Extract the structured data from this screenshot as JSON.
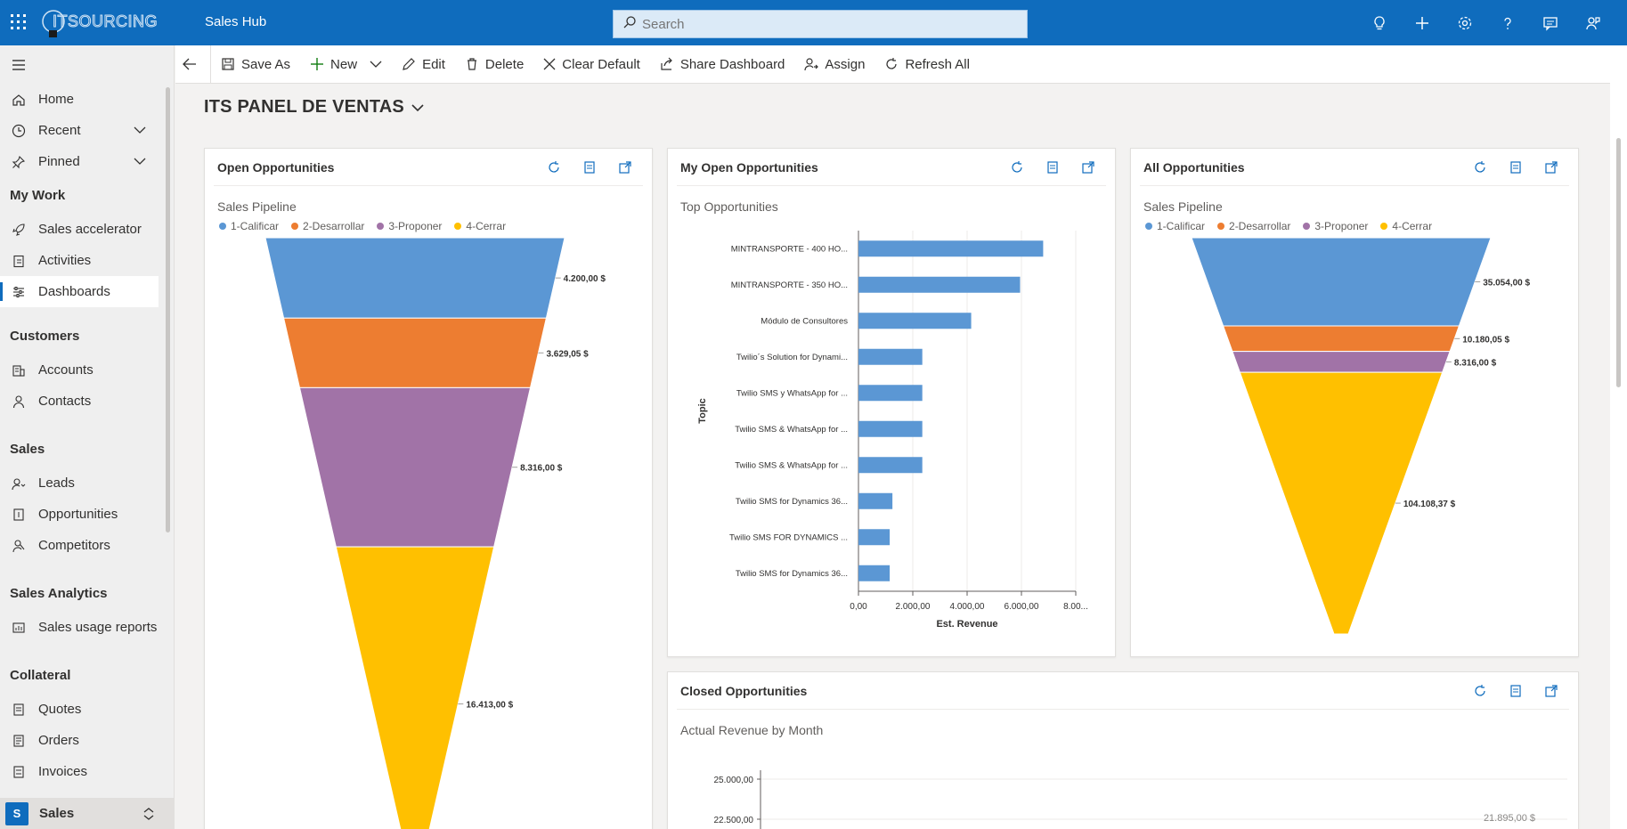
{
  "topbar": {
    "logo_text": "ITSOURCING",
    "app_title": "Sales Hub",
    "search_placeholder": "Search",
    "icons": [
      "lightbulb-icon",
      "plus-icon",
      "gear-icon",
      "help-icon",
      "chat-icon",
      "person-feedback-icon"
    ]
  },
  "nav": {
    "home": "Home",
    "recent": "Recent",
    "pinned": "Pinned",
    "my_work": "My Work",
    "sales_accelerator": "Sales accelerator",
    "activities": "Activities",
    "dashboards": "Dashboards",
    "customers": "Customers",
    "accounts": "Accounts",
    "contacts": "Contacts",
    "sales": "Sales",
    "leads": "Leads",
    "opportunities": "Opportunities",
    "competitors": "Competitors",
    "sales_analytics": "Sales Analytics",
    "sales_usage_reports": "Sales usage reports",
    "collateral": "Collateral",
    "quotes": "Quotes",
    "orders": "Orders",
    "invoices": "Invoices",
    "area_badge": "S",
    "area_label": "Sales"
  },
  "commands": {
    "save_as": "Save As",
    "new": "New",
    "edit": "Edit",
    "delete": "Delete",
    "clear_default": "Clear Default",
    "share_dashboard": "Share Dashboard",
    "assign": "Assign",
    "refresh_all": "Refresh All"
  },
  "dashboard": {
    "title": "ITS PANEL DE VENTAS"
  },
  "colors": {
    "brand": "#0f6cbd",
    "s1": "#5b97d4",
    "s2": "#ed7d31",
    "s3": "#a173a7",
    "s4": "#ffc000"
  },
  "legend": [
    "1-Calificar",
    "2-Desarrollar",
    "3-Proponer",
    "4-Cerrar"
  ],
  "cards": {
    "open": {
      "title": "Open Opportunities",
      "subtitle": "Sales Pipeline"
    },
    "my_open": {
      "title": "My Open Opportunities",
      "subtitle": "Top Opportunities"
    },
    "all": {
      "title": "All Opportunities",
      "subtitle": "Sales Pipeline"
    },
    "closed": {
      "title": "Closed Opportunities",
      "subtitle": "Actual Revenue by Month"
    }
  },
  "chart_data": [
    {
      "type": "funnel",
      "title": "Sales Pipeline",
      "categories": [
        "1-Calificar",
        "2-Desarrollar",
        "3-Proponer",
        "4-Cerrar"
      ],
      "values": [
        4200.0,
        3629.05,
        8316.0,
        16413.0
      ],
      "labels": [
        "4.200,00 $",
        "3.629,05 $",
        "8.316,00 $",
        "16.413,00 $"
      ]
    },
    {
      "type": "bar",
      "orientation": "horizontal",
      "title": "Top Opportunities",
      "xlabel": "Est. Revenue",
      "ylabel": "Topic",
      "categories": [
        "MINTRANSPORTE - 400 HO...",
        "MINTRANSPORTE - 350 HO...",
        "Módulo de Consultores",
        "Twilio´s Solution for Dynami...",
        "Twilio SMS y WhatsApp for ...",
        "Twilio SMS & WhatsApp for ...",
        "Twilio SMS & WhatsApp for ...",
        "Twilio SMS for Dynamics 36...",
        "Twilio SMS FOR DYNAMICS ...",
        "Twilio SMS for Dynamics 36..."
      ],
      "values": [
        6800,
        5950,
        4150,
        2350,
        2350,
        2350,
        2350,
        1250,
        1150,
        1150
      ],
      "xlim": [
        0,
        8000
      ],
      "xticks": [
        "0,00",
        "2.000,00",
        "4.000,00",
        "6.000,00",
        "8.00..."
      ],
      "grid": true
    },
    {
      "type": "funnel",
      "title": "Sales Pipeline",
      "categories": [
        "1-Calificar",
        "2-Desarrollar",
        "3-Proponer",
        "4-Cerrar"
      ],
      "values": [
        35054.0,
        10180.05,
        8316.0,
        104108.37
      ],
      "labels": [
        "35.054,00 $",
        "10.180,05 $",
        "8.316,00 $",
        "104.108,37 $"
      ]
    },
    {
      "type": "line",
      "title": "Actual Revenue by Month",
      "yticks": [
        "25.000,00",
        "22.500,00"
      ],
      "visible_point_label": "21.895,00 $",
      "visible_point_value": 21895
    }
  ]
}
